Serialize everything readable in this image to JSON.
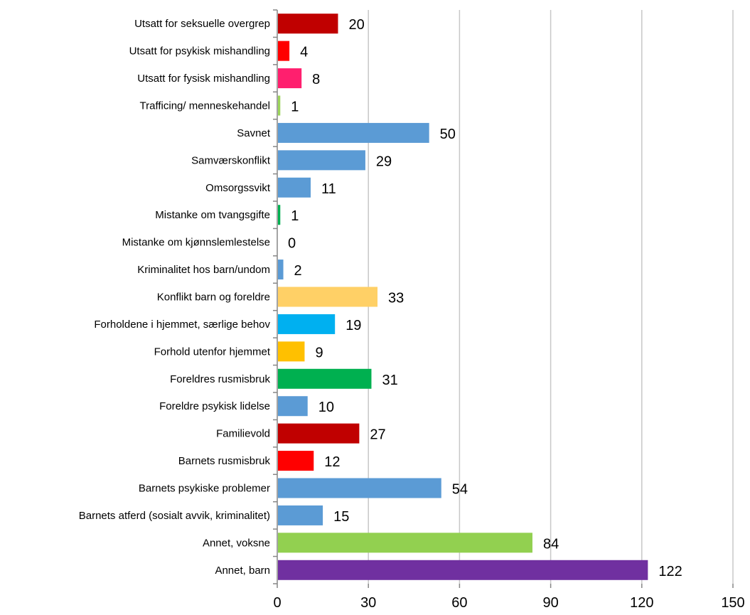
{
  "chart_data": {
    "type": "bar",
    "orientation": "horizontal",
    "title": "",
    "xlabel": "",
    "ylabel": "",
    "xlim": [
      0,
      150
    ],
    "ticks": [
      0,
      30,
      60,
      90,
      120,
      150
    ],
    "grid": "vertical",
    "legend": "none",
    "categories": [
      "Utsatt for seksuelle overgrep",
      "Utsatt for psykisk mishandling",
      "Utsatt for fysisk mishandling",
      "Trafficing/ menneskehandel",
      "Savnet",
      "Samværskonflikt",
      "Omsorgssvikt",
      "Mistanke om tvangsgifte",
      "Mistanke om kjønnslemlestelse",
      "Kriminalitet hos barn/undom",
      "Konflikt barn og foreldre",
      "Forholdene i hjemmet, særlige behov",
      "Forhold utenfor hjemmet",
      "Foreldres rusmisbruk",
      "Foreldre psykisk lidelse",
      "Familievold",
      "Barnets rusmisbruk",
      "Barnets psykiske problemer",
      "Barnets atferd (sosialt avvik, kriminalitet)",
      "Annet, voksne",
      "Annet, barn"
    ],
    "values": [
      20,
      4,
      8,
      1,
      50,
      29,
      11,
      1,
      0,
      2,
      33,
      19,
      9,
      31,
      10,
      27,
      12,
      54,
      15,
      84,
      122
    ],
    "colors": [
      "#c00000",
      "#ff0000",
      "#ff1f6e",
      "#9bd45a",
      "#5b9bd5",
      "#5b9bd5",
      "#5b9bd5",
      "#00b050",
      "#5b9bd5",
      "#5b9bd5",
      "#ffd066",
      "#00b0f0",
      "#ffc000",
      "#00b050",
      "#5b9bd5",
      "#c00000",
      "#ff0000",
      "#5b9bd5",
      "#5b9bd5",
      "#92d050",
      "#7030a0"
    ]
  }
}
